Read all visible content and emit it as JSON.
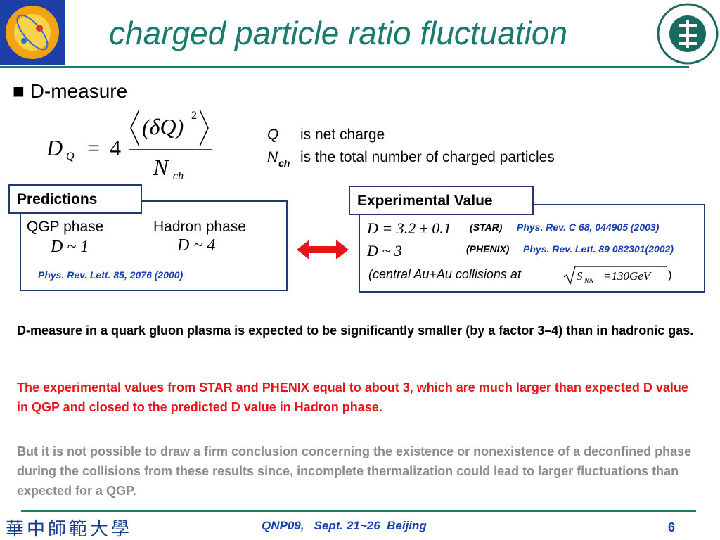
{
  "header": {
    "title": "charged particle ratio fluctuation"
  },
  "bullet": "D-measure",
  "formula": {
    "symbol": "D",
    "subscript": "Q",
    "equals": "=",
    "factor": "4",
    "numerator": "(δQ)",
    "exponent": "2",
    "denominator": "N",
    "denominator_subscript": "ch"
  },
  "definitions": [
    {
      "symbol": "Q",
      "text": "is net charge"
    },
    {
      "symbol": "N",
      "subscript": "ch",
      "text": "is the total number of charged particles"
    }
  ],
  "predictions": {
    "label": "Predictions",
    "columns": [
      {
        "name": "QGP phase",
        "value": "D ~ 1"
      },
      {
        "name": "Hadron phase",
        "value": "D ~ 4"
      }
    ],
    "reference": "Phys. Rev. Lett. 85, 2076 (2000)"
  },
  "experimental": {
    "label": "Experimental Value",
    "rows": [
      {
        "value": "D = 3.2 ± 0.1",
        "experiment": "(STAR)",
        "reference": "Phys. Rev. C 68, 044905 (2003)"
      },
      {
        "value": "D ~ 3",
        "experiment": "(PHENIX)",
        "reference": "Phys. Rev. Lett. 89 082301(2002)"
      }
    ],
    "note": "(central Au+Au collisions at",
    "energy_symbol": "S",
    "energy_subscript": "NN",
    "energy_value": "=130GeV",
    "note_end": ")"
  },
  "paragraphs": [
    "D-measure in a quark gluon plasma is expected to be significantly smaller (by a factor 3–4) than in hadronic gas.",
    "The experimental values from STAR and PHENIX equal to about 3, which are much larger than expected D value in QGP and closed to the predicted D value in Hadron phase.",
    "But it is not possible to draw a firm conclusion concerning the existence or nonexistence of a deconfined phase during the collisions from these results since, incomplete thermalization could lead to larger fluctuations than expected for a QGP."
  ],
  "footer": {
    "logo_text": "華中師範大學",
    "conference": "QNP09,   Sept. 21~26  Beijing",
    "page": "6"
  }
}
